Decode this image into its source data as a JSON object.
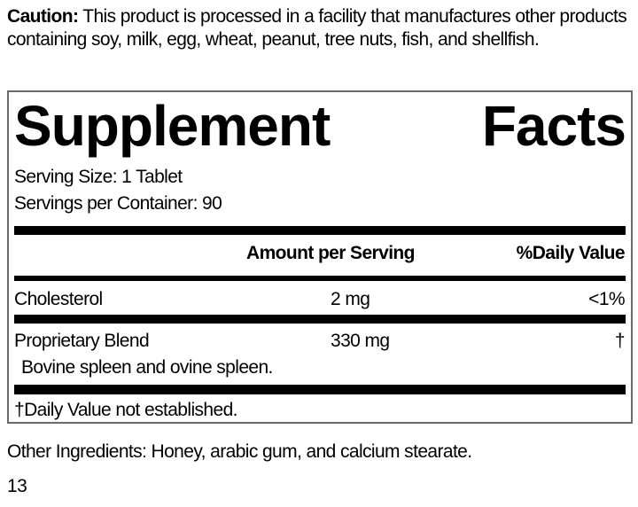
{
  "caution": {
    "label": "Caution:",
    "text": " This product is processed in a facility that manufactures other products containing soy, milk, egg, wheat, peanut, tree nuts, fish, and shellfish."
  },
  "panel": {
    "title_word1": "Supplement",
    "title_word2": "Facts",
    "serving_size": "Serving Size: 1 Tablet",
    "servings_per_container": "Servings per Container: 90",
    "col_amount": "Amount per Serving",
    "col_dv": "%Daily Value",
    "rows": [
      {
        "name": "Cholesterol",
        "amount": "2 mg",
        "dv": "<1%"
      },
      {
        "name": "Proprietary Blend",
        "sub": "Bovine spleen and ovine spleen.",
        "amount": "330 mg",
        "dv": "†"
      }
    ],
    "footnote": "†Daily Value not established."
  },
  "other_ingredients": "Other Ingredients: Honey, arabic gum, and calcium stearate.",
  "code": "13"
}
